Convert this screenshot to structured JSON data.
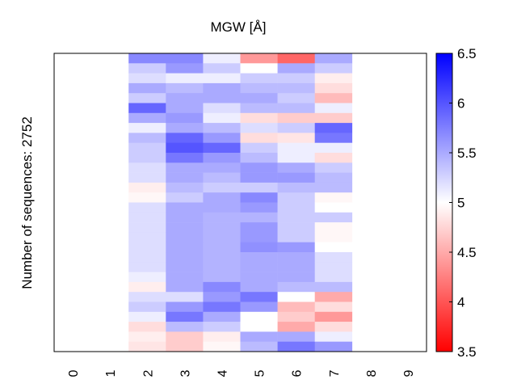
{
  "chart_data": {
    "type": "heatmap",
    "title": "MGW [Å]",
    "xlabel": "",
    "ylabel": "Number of sequences: 2752",
    "x_tick_labels": [
      "0",
      "1",
      "2",
      "3",
      "4",
      "5",
      "6",
      "7",
      "8",
      "9"
    ],
    "colorbar": {
      "range": [
        3.5,
        6.5
      ],
      "center": 5,
      "colors": {
        "low": "#ff0000",
        "mid": "#ffffff",
        "high": "#0000ff"
      },
      "tick_labels": [
        "3.5",
        "4",
        "4.5",
        "5",
        "5.5",
        "6",
        "6.5"
      ],
      "ticks": [
        3.5,
        4,
        4.5,
        5,
        5.5,
        6,
        6.5
      ]
    },
    "columns": [
      {
        "position": 2,
        "values": [
          5.7,
          5.3,
          5.2,
          5.5,
          5.3,
          5.9,
          5.5,
          5.1,
          5.4,
          5.3,
          5.3,
          5.2,
          5.2,
          4.9,
          4.95,
          5.2,
          5.2,
          5.2,
          5.2,
          5.2,
          5.2,
          5.2,
          5.1,
          4.9,
          5.2,
          5.3,
          5.1,
          4.8,
          4.9,
          4.85
        ]
      },
      {
        "position": 3,
        "values": [
          5.7,
          5.6,
          5.1,
          5.4,
          5.5,
          5.5,
          5.6,
          5.5,
          5.9,
          6.0,
          5.8,
          5.5,
          5.5,
          5.4,
          5.3,
          5.5,
          5.5,
          5.5,
          5.5,
          5.5,
          5.5,
          5.5,
          5.5,
          5.5,
          5.2,
          5.6,
          5.8,
          5.4,
          4.7,
          4.7
        ]
      },
      {
        "position": 4,
        "values": [
          5.1,
          5.3,
          5.1,
          5.5,
          5.5,
          5.2,
          5.1,
          5.4,
          5.6,
          5.9,
          5.6,
          5.5,
          5.4,
          5.3,
          5.5,
          5.5,
          5.45,
          5.45,
          5.45,
          5.45,
          5.45,
          5.45,
          5.45,
          5.7,
          5.6,
          5.8,
          5.5,
          5.3,
          4.9,
          4.95
        ]
      },
      {
        "position": 5,
        "values": [
          4.4,
          5.0,
          5.3,
          5.4,
          5.5,
          5.4,
          4.8,
          5.2,
          4.8,
          5.3,
          5.4,
          5.6,
          5.6,
          5.3,
          5.7,
          5.6,
          5.45,
          5.6,
          5.6,
          5.65,
          5.5,
          5.5,
          5.5,
          5.5,
          5.8,
          5.6,
          5.0,
          5.0,
          5.5,
          5.4
        ]
      },
      {
        "position": 6,
        "values": [
          4.1,
          5.5,
          5.3,
          5.4,
          5.3,
          5.4,
          4.7,
          5.3,
          4.85,
          5.1,
          5.1,
          5.5,
          5.6,
          5.4,
          5.3,
          5.3,
          5.3,
          5.3,
          5.3,
          5.6,
          5.5,
          5.5,
          5.5,
          5.4,
          5.0,
          4.6,
          4.7,
          4.5,
          5.5,
          5.8
        ]
      },
      {
        "position": 7,
        "values": [
          5.5,
          5.3,
          4.9,
          4.8,
          4.6,
          5.1,
          4.7,
          5.9,
          5.8,
          5.1,
          4.8,
          5.3,
          5.4,
          5.4,
          4.95,
          5.0,
          5.3,
          4.95,
          4.95,
          5.0,
          5.2,
          5.2,
          5.2,
          5.4,
          4.5,
          4.8,
          4.4,
          4.8,
          5.1,
          5.6
        ]
      }
    ]
  }
}
